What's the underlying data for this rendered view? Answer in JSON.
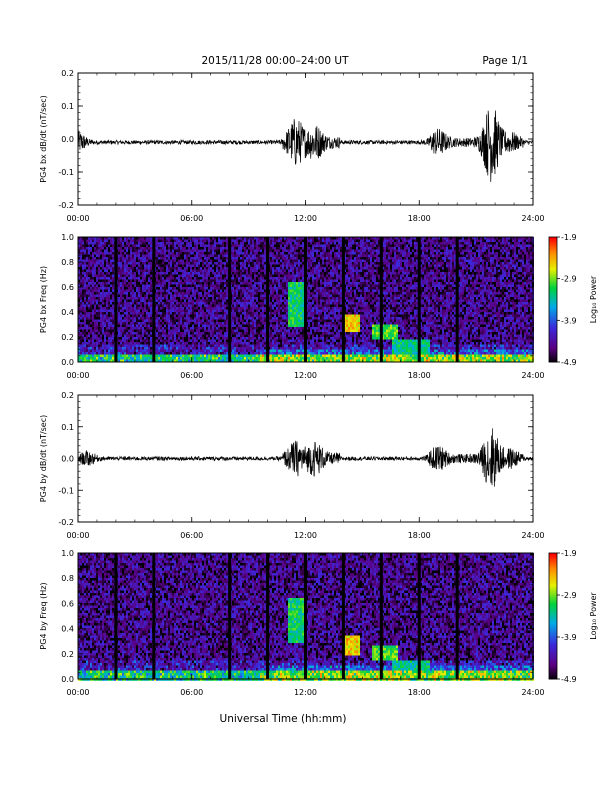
{
  "header": {
    "title": "2015/11/28  00:00–24:00 UT",
    "page": "Page 1/1"
  },
  "footer": {
    "xlabel": "Universal Time (hh:mm)"
  },
  "chart_data": [
    {
      "type": "line",
      "ylabel": "PG4 bx dB/dt (nT/sec)",
      "ylim": [
        -0.2,
        0.2
      ],
      "yticks": [
        "-0.2",
        "-0.1",
        "0.0",
        "0.1",
        "0.2"
      ],
      "xlim": [
        0,
        24
      ],
      "xticks": [
        "00:00",
        "06:00",
        "12:00",
        "18:00",
        "24:00"
      ],
      "baseline": -0.01,
      "bursts": [
        {
          "x": 0.0,
          "y_min": -0.04,
          "y_max": 0.01
        },
        {
          "x": 11.5,
          "y_min": -0.05,
          "y_max": 0.05
        },
        {
          "x": 12.5,
          "y_min": -0.05,
          "y_max": 0.03
        },
        {
          "x": 19.0,
          "y_min": -0.04,
          "y_max": 0.02
        },
        {
          "x": 21.8,
          "y_min": -0.12,
          "y_max": 0.08
        },
        {
          "x": 22.8,
          "y_min": -0.03,
          "y_max": 0.01
        }
      ]
    },
    {
      "type": "heatmap",
      "ylabel": "PG4 bx Freq (Hz)",
      "ylim": [
        0,
        1.0
      ],
      "yticks": [
        "0.0",
        "0.2",
        "0.4",
        "0.6",
        "0.8",
        "1.0"
      ],
      "xlim": [
        0,
        24
      ],
      "xticks": [
        "00:00",
        "06:00",
        "12:00",
        "18:00",
        "24:00"
      ],
      "colorbar": {
        "label": "Log₁₀ Power",
        "ticks": [
          "-1.9",
          "-2.9",
          "-3.9",
          "-4.9"
        ],
        "range": [
          -4.9,
          -1.9
        ]
      },
      "gap_hours": [
        2,
        4,
        8,
        10,
        12,
        14,
        16,
        18,
        20
      ],
      "features": [
        {
          "x_start": 11.0,
          "x_end": 12.0,
          "f_low": 0.3,
          "f_high": 0.65,
          "level": -3.2
        },
        {
          "x_start": 14.0,
          "x_end": 14.8,
          "f_low": 0.25,
          "f_high": 0.38,
          "level": -2.5
        },
        {
          "x_start": 15.5,
          "x_end": 16.8,
          "f_low": 0.2,
          "f_high": 0.3,
          "level": -3.0
        },
        {
          "x_start": 16.5,
          "x_end": 18.5,
          "f_low": 0.08,
          "f_high": 0.18,
          "level": -3.3
        }
      ]
    },
    {
      "type": "line",
      "ylabel": "PG4 by dB/dt (nT/sec)",
      "ylim": [
        -0.2,
        0.2
      ],
      "yticks": [
        "-0.2",
        "-0.1",
        "0.0",
        "0.1",
        "0.2"
      ],
      "xlim": [
        0,
        24
      ],
      "xticks": [
        "00:00",
        "06:00",
        "12:00",
        "18:00",
        "24:00"
      ],
      "baseline": 0.0,
      "bursts": [
        {
          "x": 0.5,
          "y_min": -0.02,
          "y_max": 0.02
        },
        {
          "x": 11.5,
          "y_min": -0.04,
          "y_max": 0.04
        },
        {
          "x": 12.5,
          "y_min": -0.04,
          "y_max": 0.03
        },
        {
          "x": 19.0,
          "y_min": -0.03,
          "y_max": 0.03
        },
        {
          "x": 21.8,
          "y_min": -0.07,
          "y_max": 0.09
        },
        {
          "x": 22.8,
          "y_min": -0.02,
          "y_max": 0.02
        }
      ]
    },
    {
      "type": "heatmap",
      "ylabel": "PG4 by Freq (Hz)",
      "ylim": [
        0,
        1.0
      ],
      "yticks": [
        "0.0",
        "0.2",
        "0.4",
        "0.6",
        "0.8",
        "1.0"
      ],
      "xlim": [
        0,
        24
      ],
      "xticks": [
        "00:00",
        "06:00",
        "12:00",
        "18:00",
        "24:00"
      ],
      "colorbar": {
        "label": "Log₁₀ Power",
        "ticks": [
          "-1.9",
          "-2.9",
          "-3.9",
          "-4.9"
        ],
        "range": [
          -4.9,
          -1.9
        ]
      },
      "gap_hours": [
        2,
        4,
        8,
        10,
        12,
        14,
        16,
        18,
        20
      ],
      "features": [
        {
          "x_start": 11.0,
          "x_end": 12.0,
          "f_low": 0.3,
          "f_high": 0.65,
          "level": -3.2
        },
        {
          "x_start": 14.0,
          "x_end": 14.8,
          "f_low": 0.2,
          "f_high": 0.35,
          "level": -2.5
        },
        {
          "x_start": 15.5,
          "x_end": 16.8,
          "f_low": 0.15,
          "f_high": 0.28,
          "level": -3.0
        },
        {
          "x_start": 16.5,
          "x_end": 18.5,
          "f_low": 0.08,
          "f_high": 0.16,
          "level": -3.3
        }
      ]
    }
  ]
}
